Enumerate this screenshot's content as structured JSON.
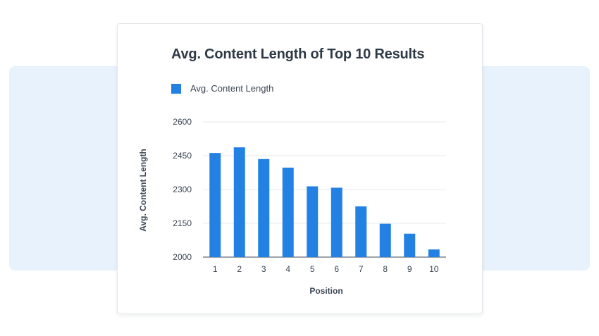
{
  "chart_data": {
    "type": "bar",
    "title": "Avg. Content Length of Top 10 Results",
    "xlabel": "Position",
    "ylabel": "Avg. Content Length",
    "categories": [
      "1",
      "2",
      "3",
      "4",
      "5",
      "6",
      "7",
      "8",
      "9",
      "10"
    ],
    "series": [
      {
        "name": "Avg. Content Length",
        "values": [
          2462,
          2487,
          2435,
          2397,
          2314,
          2308,
          2225,
          2148,
          2104,
          2034
        ],
        "color": "#2381e4"
      }
    ],
    "ylim": [
      2000,
      2600
    ],
    "yticks": [
      2600,
      2450,
      2300,
      2150,
      2000
    ],
    "grid": true,
    "legend_position": "top-left"
  }
}
